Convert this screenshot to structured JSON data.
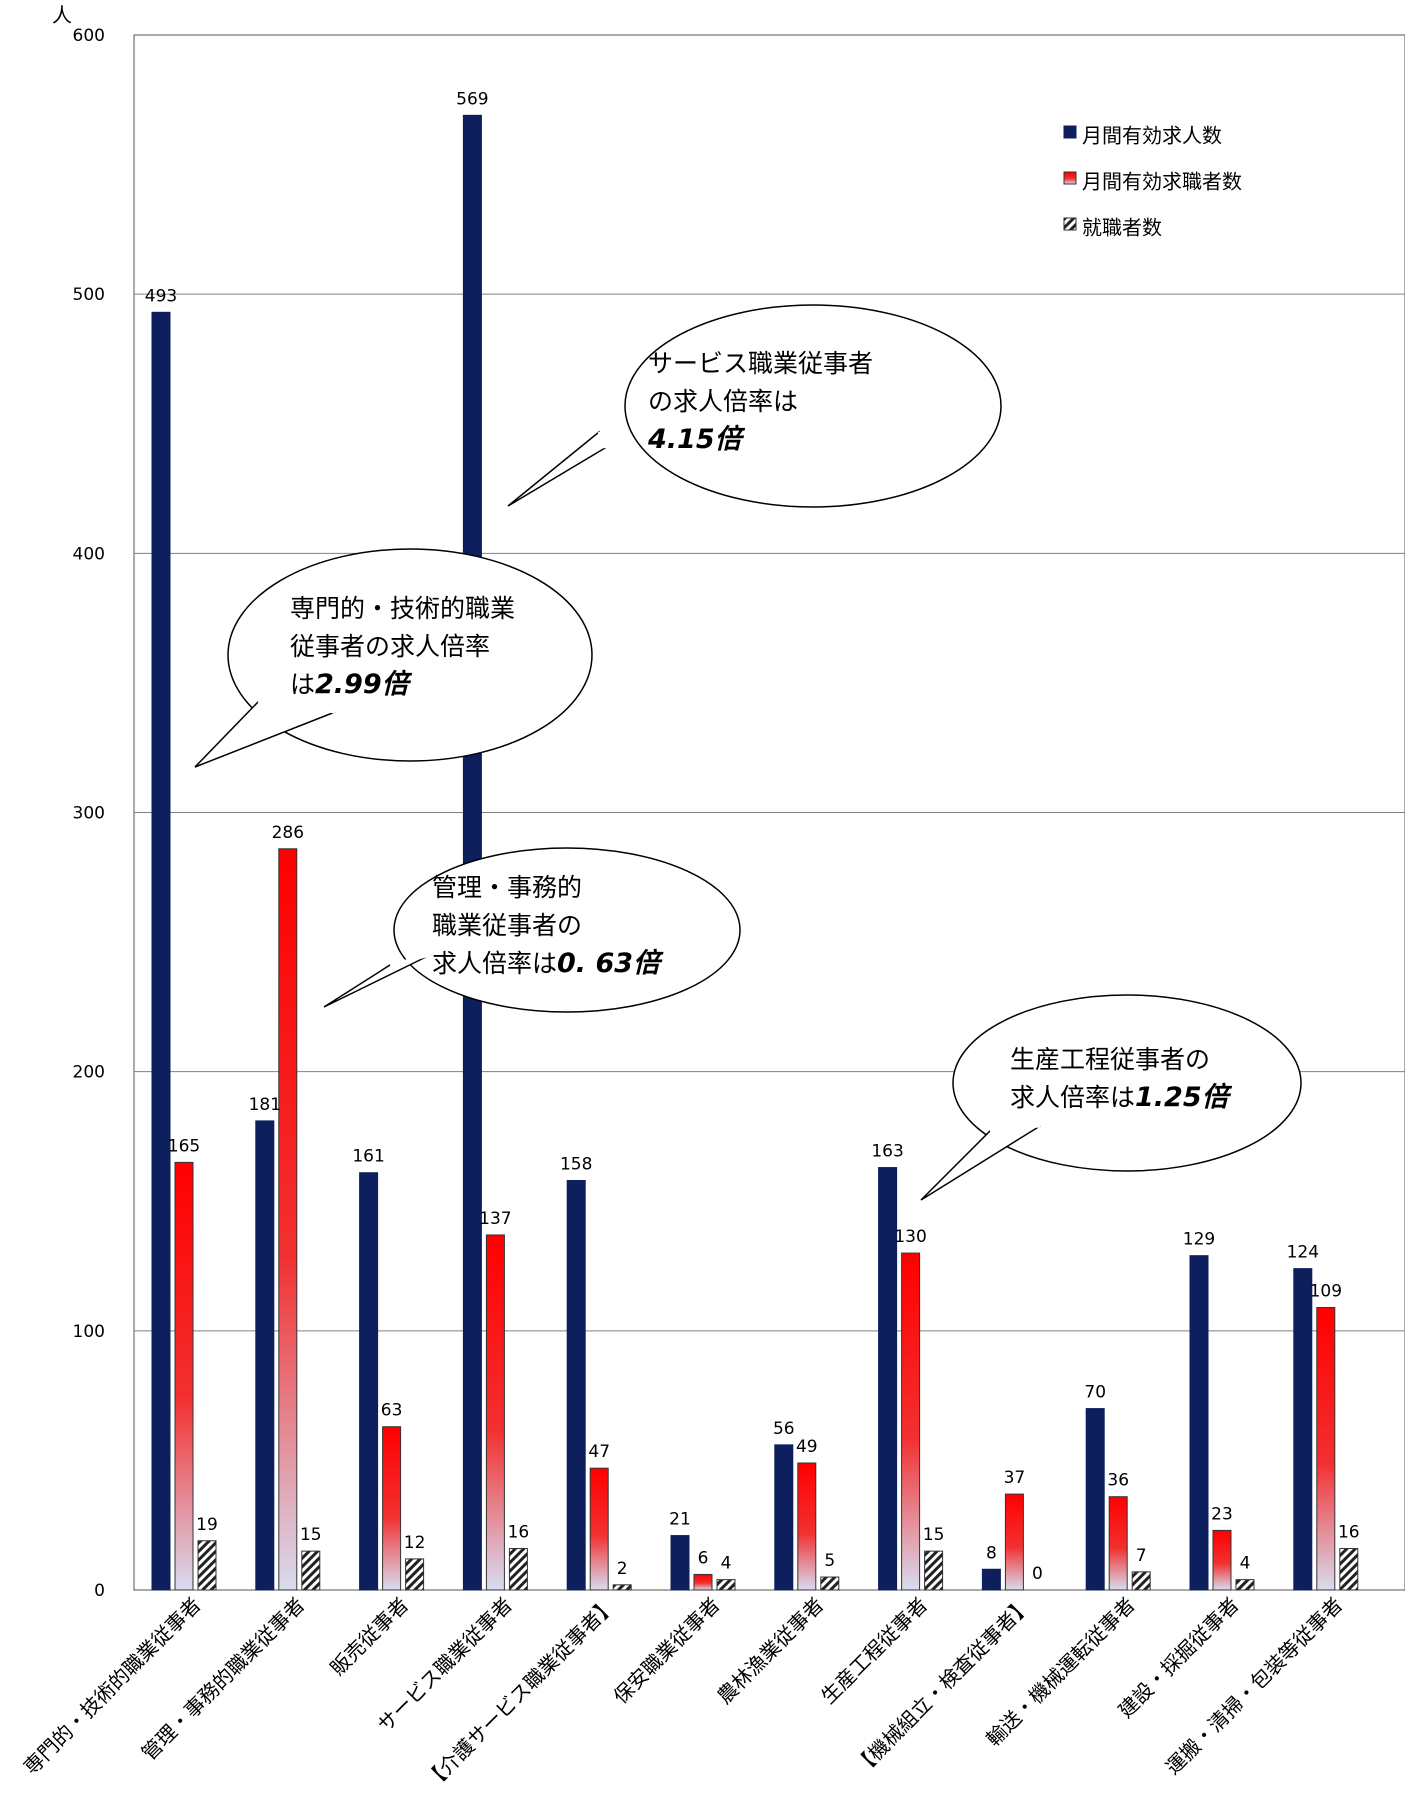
{
  "chart_data": {
    "type": "bar",
    "ylabel": "人",
    "ylim": [
      0,
      600
    ],
    "yticks": [
      0,
      100,
      200,
      300,
      400,
      500,
      600
    ],
    "grid": true,
    "legend_position": "top-right",
    "categories": [
      "専門的・技術的職業従事者",
      "管理・事務的職業従事者",
      "販売従事者",
      "サービス職業従事者",
      "【介護サービス職業従事者】",
      "保安職業従事者",
      "農林漁業従事者",
      "生産工程従事者",
      "【機械組立・検査従事者】",
      "輸送・機械運転従事者",
      "建設・採掘従事者",
      "運搬・清掃・包装等従事者"
    ],
    "series": [
      {
        "name": "月間有効求人数",
        "color": "#0d1f5c",
        "values": [
          493,
          181,
          161,
          569,
          158,
          21,
          56,
          163,
          8,
          70,
          129,
          124
        ]
      },
      {
        "name": "月間有効求職者数",
        "color": "#ff0000",
        "values": [
          165,
          286,
          63,
          137,
          47,
          6,
          49,
          130,
          37,
          36,
          23,
          109
        ]
      },
      {
        "name": "就職者数",
        "color": "#333333",
        "values": [
          19,
          15,
          12,
          16,
          2,
          4,
          5,
          15,
          0,
          7,
          4,
          16
        ]
      }
    ],
    "annotations": [
      {
        "lines": [
          "専門的・技術的職業",
          "従事者の求人倍率"
        ],
        "last_prefix": "は",
        "last_bold": "2.99倍"
      },
      {
        "lines": [
          "サービス職業従事者",
          "の求人倍率は"
        ],
        "last_prefix": "",
        "last_bold": "4.15倍"
      },
      {
        "lines": [
          "管理・事務的",
          "職業従事者の"
        ],
        "last_prefix": "求人倍率は",
        "last_bold": "0. 63倍"
      },
      {
        "lines": [
          "生産工程従事者の"
        ],
        "last_prefix": "求人倍率は",
        "last_bold": "1.25倍"
      }
    ]
  }
}
